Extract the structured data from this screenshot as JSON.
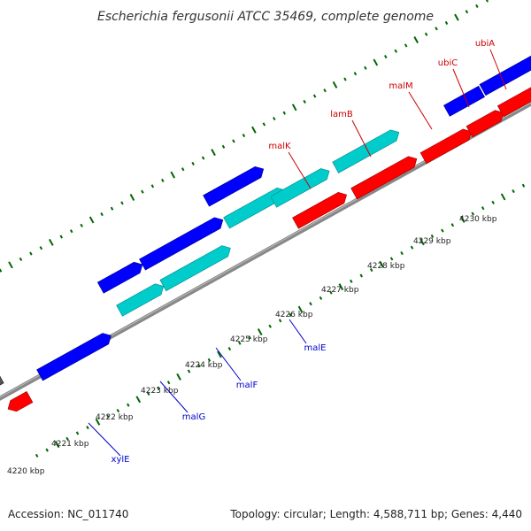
{
  "title": "Escherichia fergusonii ATCC 35469, complete genome",
  "ticks": [
    {
      "label": "4220 kbp"
    },
    {
      "label": "4221 kbp"
    },
    {
      "label": "4222 kbp"
    },
    {
      "label": "4223 kbp"
    },
    {
      "label": "4224 kbp"
    },
    {
      "label": "4225 kbp"
    },
    {
      "label": "4226 kbp"
    },
    {
      "label": "4227 kbp"
    },
    {
      "label": "4228 kbp"
    },
    {
      "label": "4229 kbp"
    },
    {
      "label": "4230 kbp"
    }
  ],
  "gene_labels": [
    {
      "name": "xylE",
      "color": "#0000cc"
    },
    {
      "name": "malG",
      "color": "#0000cc"
    },
    {
      "name": "malF",
      "color": "#0000cc"
    },
    {
      "name": "malE",
      "color": "#0000cc"
    },
    {
      "name": "malK",
      "color": "#cc0000"
    },
    {
      "name": "lamB",
      "color": "#cc0000"
    },
    {
      "name": "malM",
      "color": "#cc0000"
    },
    {
      "name": "ubiC",
      "color": "#cc0000"
    },
    {
      "name": "ubiA",
      "color": "#cc0000"
    }
  ],
  "colors": {
    "forward_cds": "#0000ff",
    "reverse_cds": "#ff0000",
    "forward_other": "#00cccc",
    "unknown": "#555555",
    "backbone": "#888888",
    "ticks": "#006600"
  },
  "footer": {
    "accession": "Accession: NC_011740",
    "summary": "Topology: circular; Length: 4,588,711 bp; Genes: 4,440"
  }
}
